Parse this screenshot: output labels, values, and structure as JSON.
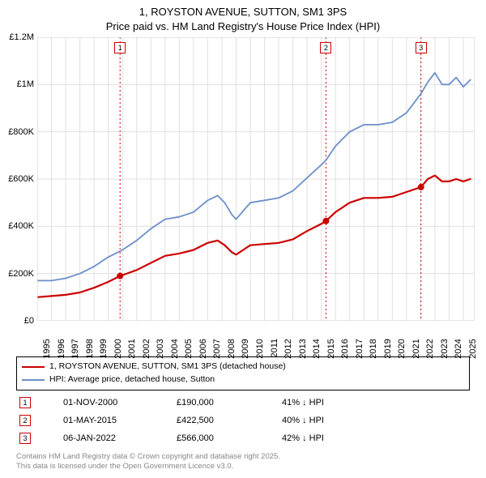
{
  "title": {
    "line1": "1, ROYSTON AVENUE, SUTTON, SM1 3PS",
    "line2": "Price paid vs. HM Land Registry's House Price Index (HPI)"
  },
  "chart": {
    "type": "line",
    "background_color": "#ffffff",
    "plot_bg_color": "#ffffff",
    "grid_color": "#e0e0e0",
    "grid_width": 1,
    "x": {
      "min": 1995,
      "max": 2025.8,
      "ticks": [
        1995,
        1996,
        1997,
        1998,
        1999,
        2000,
        2001,
        2002,
        2003,
        2004,
        2005,
        2006,
        2007,
        2008,
        2009,
        2010,
        2011,
        2012,
        2013,
        2014,
        2015,
        2016,
        2017,
        2018,
        2019,
        2020,
        2021,
        2022,
        2023,
        2024,
        2025
      ],
      "tick_fontsize": 11
    },
    "y": {
      "min": 0,
      "max": 1200000,
      "ticks": [
        0,
        200000,
        400000,
        600000,
        800000,
        1000000,
        1200000
      ],
      "tick_labels": [
        "£0",
        "£200K",
        "£400K",
        "£600K",
        "£800K",
        "£1M",
        "£1.2M"
      ],
      "tick_fontsize": 11
    },
    "vlines": [
      {
        "x": 2000.83,
        "color": "#cc0000",
        "dash": "2,3",
        "label": "1"
      },
      {
        "x": 2015.33,
        "color": "#cc0000",
        "dash": "2,3",
        "label": "2"
      },
      {
        "x": 2022.02,
        "color": "#cc0000",
        "dash": "2,3",
        "label": "3"
      }
    ],
    "marker_box_border": "#cc0000",
    "marker_box_text_color": "#000000",
    "series": [
      {
        "name": "price_paid",
        "color": "#cc0000",
        "width": 2.2,
        "points": [
          [
            1995,
            100000
          ],
          [
            1996,
            105000
          ],
          [
            1997,
            110000
          ],
          [
            1998,
            120000
          ],
          [
            1999,
            140000
          ],
          [
            2000,
            165000
          ],
          [
            2000.83,
            190000
          ],
          [
            2002,
            215000
          ],
          [
            2003,
            245000
          ],
          [
            2004,
            275000
          ],
          [
            2005,
            285000
          ],
          [
            2006,
            300000
          ],
          [
            2007,
            330000
          ],
          [
            2007.7,
            340000
          ],
          [
            2008.2,
            320000
          ],
          [
            2008.7,
            290000
          ],
          [
            2009,
            280000
          ],
          [
            2009.5,
            300000
          ],
          [
            2010,
            320000
          ],
          [
            2011,
            325000
          ],
          [
            2012,
            330000
          ],
          [
            2013,
            345000
          ],
          [
            2014,
            380000
          ],
          [
            2015,
            410000
          ],
          [
            2015.33,
            422500
          ],
          [
            2016,
            460000
          ],
          [
            2017,
            500000
          ],
          [
            2018,
            520000
          ],
          [
            2019,
            520000
          ],
          [
            2020,
            525000
          ],
          [
            2021,
            545000
          ],
          [
            2022.02,
            566000
          ],
          [
            2022.5,
            600000
          ],
          [
            2023,
            615000
          ],
          [
            2023.5,
            590000
          ],
          [
            2024,
            590000
          ],
          [
            2024.5,
            600000
          ],
          [
            2025,
            590000
          ],
          [
            2025.5,
            600000
          ]
        ],
        "markers": [
          {
            "x": 2000.83,
            "y": 190000
          },
          {
            "x": 2015.33,
            "y": 422500
          },
          {
            "x": 2022.02,
            "y": 566000
          }
        ],
        "marker_color": "#cc0000",
        "marker_size": 4
      },
      {
        "name": "hpi",
        "color": "#6b8fc9",
        "width": 1.8,
        "points": [
          [
            1995,
            170000
          ],
          [
            1996,
            170000
          ],
          [
            1997,
            180000
          ],
          [
            1998,
            200000
          ],
          [
            1999,
            230000
          ],
          [
            2000,
            270000
          ],
          [
            2001,
            300000
          ],
          [
            2002,
            340000
          ],
          [
            2003,
            390000
          ],
          [
            2004,
            430000
          ],
          [
            2005,
            440000
          ],
          [
            2006,
            460000
          ],
          [
            2007,
            510000
          ],
          [
            2007.7,
            530000
          ],
          [
            2008.2,
            500000
          ],
          [
            2008.7,
            450000
          ],
          [
            2009,
            430000
          ],
          [
            2009.5,
            465000
          ],
          [
            2010,
            500000
          ],
          [
            2011,
            510000
          ],
          [
            2012,
            520000
          ],
          [
            2013,
            550000
          ],
          [
            2014,
            605000
          ],
          [
            2015,
            660000
          ],
          [
            2015.33,
            680000
          ],
          [
            2016,
            740000
          ],
          [
            2017,
            800000
          ],
          [
            2018,
            830000
          ],
          [
            2019,
            830000
          ],
          [
            2020,
            840000
          ],
          [
            2021,
            880000
          ],
          [
            2022,
            960000
          ],
          [
            2022.5,
            1010000
          ],
          [
            2023,
            1050000
          ],
          [
            2023.5,
            1000000
          ],
          [
            2024,
            1000000
          ],
          [
            2024.5,
            1030000
          ],
          [
            2025,
            990000
          ],
          [
            2025.5,
            1020000
          ]
        ]
      }
    ]
  },
  "legend": {
    "items": [
      {
        "color": "#cc0000",
        "label": "1, ROYSTON AVENUE, SUTTON, SM1 3PS (detached house)"
      },
      {
        "color": "#6b8fc9",
        "label": "HPI: Average price, detached house, Sutton"
      }
    ]
  },
  "transactions": [
    {
      "n": "1",
      "date": "01-NOV-2000",
      "price": "£190,000",
      "delta": "41% ↓ HPI",
      "border": "#cc0000"
    },
    {
      "n": "2",
      "date": "01-MAY-2015",
      "price": "£422,500",
      "delta": "40% ↓ HPI",
      "border": "#cc0000"
    },
    {
      "n": "3",
      "date": "06-JAN-2022",
      "price": "£566,000",
      "delta": "42% ↓ HPI",
      "border": "#cc0000"
    }
  ],
  "footer": {
    "line1": "Contains HM Land Registry data © Crown copyright and database right 2025.",
    "line2": "This data is licensed under the Open Government Licence v3.0."
  }
}
